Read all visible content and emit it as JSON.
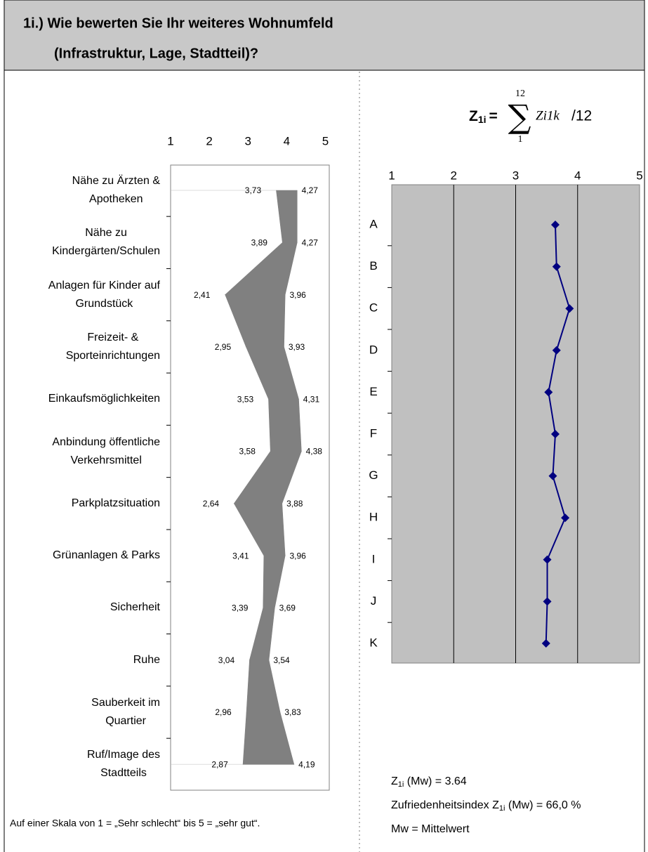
{
  "header": {
    "title_line1": "1i.) Wie bewerten Sie Ihr weiteres Wohnumfeld",
    "title_line2": "(Infrastruktur, Lage, Stadtteil)?"
  },
  "formula": {
    "lhs": "Z",
    "lhs_sub": "1i",
    "equals": "=",
    "sum": "∑",
    "upper": "12",
    "lower": "1",
    "term": "Zi1k",
    "divisor": "/12"
  },
  "footnote": "Auf einer Skala von 1 = „Sehr schlecht“ bis 5 = „sehr gut“.",
  "notes": [
    {
      "pre": "Z",
      "sub": "1i",
      "post": " (Mw) = 3.64"
    },
    {
      "pre": "Zufriedenheitsindex Z",
      "sub": "1i",
      "post": " (Mw) = 66,0 %"
    },
    {
      "text": "Mw = Mittelwert"
    }
  ],
  "chart_data": [
    {
      "type": "band",
      "categories": [
        "Nähe zu Ärzten &\nApotheken",
        "Nähe zu\nKindergärten/Schulen",
        "Anlagen für Kinder auf\nGrundstück",
        "Freizeit- &\nSporteinrichtungen",
        "Einkaufsmöglichkeiten",
        "Anbindung öffentliche\nVerkehrsmittel",
        "Parkplatzsituation",
        "Grünanlagen & Parks",
        "Sicherheit",
        "Ruhe",
        "Sauberkeit im\nQuartier",
        "Ruf/Image des\nStadtteils"
      ],
      "series": [
        {
          "values": [
            3.73,
            3.89,
            2.41,
            2.95,
            3.53,
            3.58,
            2.64,
            3.41,
            3.39,
            3.04,
            2.96,
            2.87
          ],
          "value_labels": [
            "3,73",
            "3,89",
            "2,41",
            "2,95",
            "3,53",
            "3,58",
            "2,64",
            "3,41",
            "3,39",
            "3,04",
            "2,96",
            "2,87"
          ]
        },
        {
          "values": [
            4.27,
            4.27,
            3.96,
            3.93,
            4.31,
            4.38,
            3.88,
            3.96,
            3.69,
            3.54,
            3.83,
            4.19
          ],
          "value_labels": [
            "4,27",
            "4,27",
            "3,96",
            "3,93",
            "4,31",
            "4,38",
            "3,88",
            "3,96",
            "3,69",
            "3,54",
            "3,83",
            "4,19"
          ]
        }
      ],
      "color": "#808080",
      "xlim": [
        1,
        5.1
      ],
      "xticks": [
        1,
        2,
        3,
        4,
        5
      ]
    },
    {
      "type": "line",
      "categories": [
        "A",
        "B",
        "C",
        "D",
        "E",
        "F",
        "G",
        "H",
        "I",
        "J",
        "K"
      ],
      "values": [
        3.64,
        3.66,
        3.87,
        3.66,
        3.53,
        3.64,
        3.6,
        3.8,
        3.51,
        3.51,
        3.49
      ],
      "color": "#000080",
      "plot_color": "#c0c0c0",
      "xlim": [
        1,
        5
      ],
      "xticks": [
        1,
        2,
        3,
        4,
        5
      ],
      "grid": true
    }
  ]
}
